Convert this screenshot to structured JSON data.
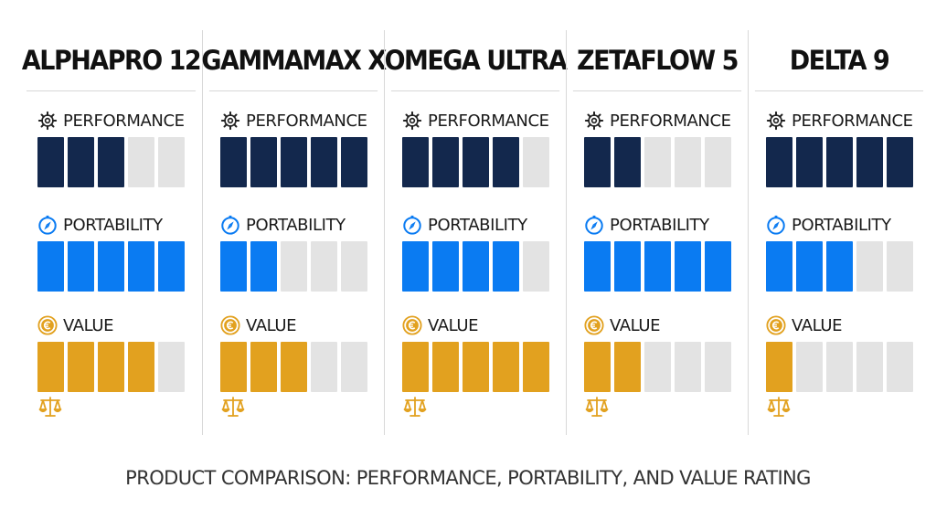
{
  "chart_data": {
    "type": "table",
    "title": "",
    "caption": "PRODUCT COMPARISON: PERFORMANCE, PORTABILITY, AND VALUE RATING",
    "max_score": 5,
    "products": [
      "ALPHAPRO 12",
      "GAMMAMAX X",
      "OMEGA ULTRA",
      "ZETAFLOW 5",
      "DELTA 9"
    ],
    "series": [
      {
        "name": "PERFORMANCE",
        "icon": "gear-icon",
        "color": "#13284d",
        "values": [
          3,
          5,
          4,
          2,
          5
        ]
      },
      {
        "name": "PORTABILITY",
        "icon": "compass-icon",
        "color": "#0a7bf2",
        "values": [
          5,
          2,
          4,
          5,
          3
        ]
      },
      {
        "name": "VALUE",
        "icon": "euro-coin-icon",
        "color": "#e2a11f",
        "values": [
          4,
          3,
          5,
          2,
          1
        ]
      }
    ],
    "empty_color": "#e3e3e3",
    "footer_icon": "balance-scale-icon"
  }
}
